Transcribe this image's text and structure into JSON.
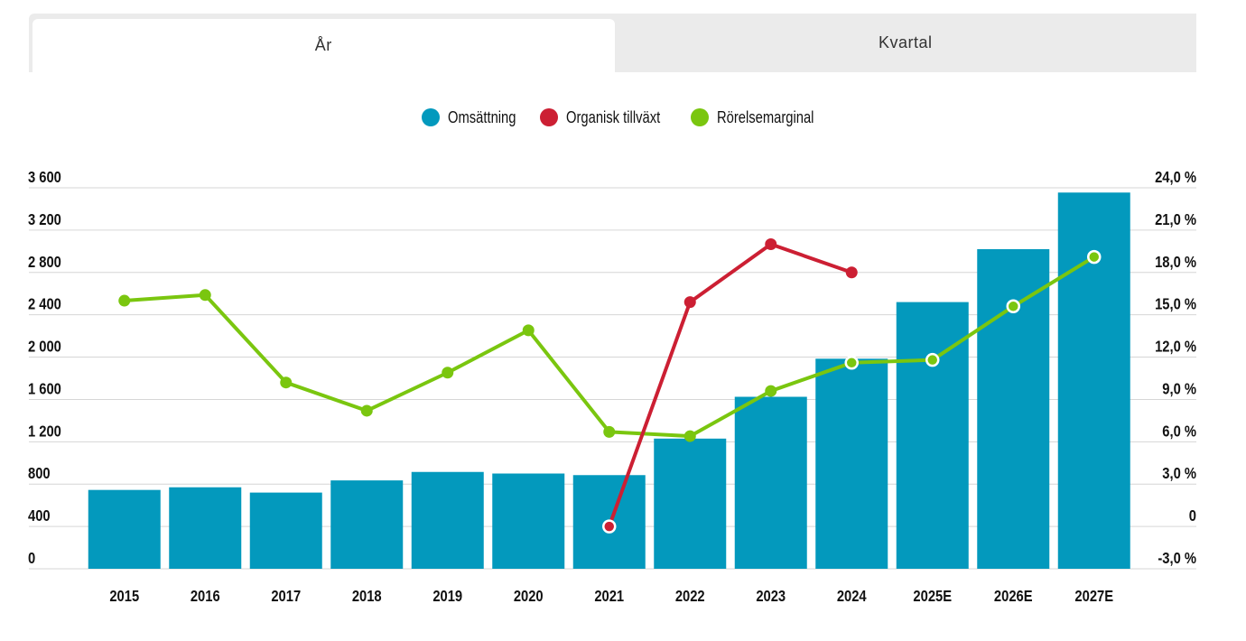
{
  "tabs": [
    {
      "label": "År",
      "active": true
    },
    {
      "label": "Kvartal",
      "active": false
    }
  ],
  "legend": [
    {
      "label": "Omsättning",
      "color": "#0399bd"
    },
    {
      "label": "Organisk tillväxt",
      "color": "#cc1f33"
    },
    {
      "label": "Rörelsemarginal",
      "color": "#7ac60f"
    }
  ],
  "chart_data": {
    "type": "bar",
    "categories": [
      "2015",
      "2016",
      "2017",
      "2018",
      "2019",
      "2020",
      "2021",
      "2022",
      "2023",
      "2024",
      "2025E",
      "2026E",
      "2027E"
    ],
    "left_axis": {
      "ticks": [
        "0",
        "400",
        "800",
        "1 200",
        "1 600",
        "2 000",
        "2 400",
        "2 800",
        "3 200",
        "3 600"
      ],
      "ylim": [
        0,
        3600
      ]
    },
    "right_axis": {
      "ticks": [
        "-3,0 %",
        "0",
        "3,0 %",
        "6,0 %",
        "9,0 %",
        "12,0 %",
        "15,0 %",
        "18,0 %",
        "21,0 %",
        "24,0 %"
      ],
      "ylim": [
        -3,
        24
      ]
    },
    "series": [
      {
        "name": "Omsättning",
        "type": "bar",
        "axis": "left",
        "values": [
          745,
          770,
          720,
          835,
          915,
          900,
          885,
          1230,
          1625,
          1985,
          2520,
          3020,
          3555
        ]
      },
      {
        "name": "Organisk tillväxt",
        "type": "line",
        "axis": "right",
        "values": [
          null,
          null,
          null,
          null,
          null,
          null,
          0.0,
          15.9,
          20.0,
          18.0,
          null,
          null,
          null
        ]
      },
      {
        "name": "Rörelsemarginal",
        "type": "line",
        "axis": "right",
        "values": [
          16.0,
          16.4,
          10.2,
          8.2,
          10.9,
          13.9,
          6.7,
          6.4,
          9.6,
          11.6,
          11.8,
          15.6,
          19.1
        ]
      }
    ],
    "grid": true
  }
}
